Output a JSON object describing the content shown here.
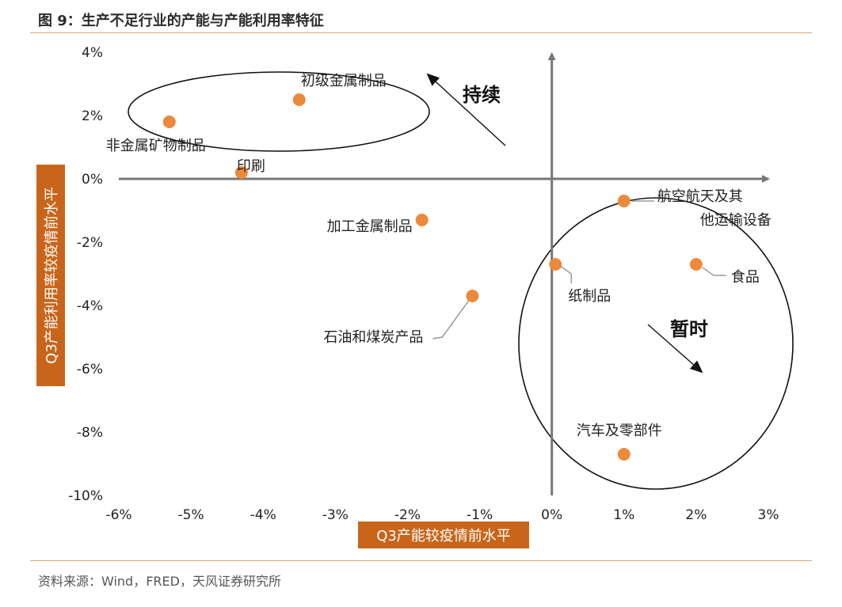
{
  "title": "图 9：生产不足行业的产能与产能利用率特征",
  "source": "资料来源：Wind，FRED，天风证券研究所",
  "colors": {
    "marker": "#ec8a3b",
    "axis_box": "#c8651b",
    "rule": "#d9a46a",
    "axis": "#777777"
  },
  "chart_data": {
    "type": "scatter",
    "xlabel": "Q3产能较疫情前水平",
    "ylabel": "Q3产能利用率较疫情前水平",
    "xlim": [
      -6,
      3
    ],
    "ylim": [
      -10,
      4
    ],
    "x_ticks": [
      "-6%",
      "-5%",
      "-4%",
      "-3%",
      "-2%",
      "-1%",
      "0%",
      "1%",
      "2%",
      "3%"
    ],
    "y_ticks": [
      "4%",
      "2%",
      "0%",
      "-2%",
      "-4%",
      "-6%",
      "-8%",
      "-10%"
    ],
    "points": [
      {
        "label": "初级金属制品",
        "x": -3.5,
        "y": 2.5
      },
      {
        "label": "非金属矿物制品",
        "x": -5.3,
        "y": 1.8
      },
      {
        "label": "印刷",
        "x": -4.3,
        "y": 0.2
      },
      {
        "label": "加工金属制品",
        "x": -1.8,
        "y": -1.3
      },
      {
        "label": "石油和煤炭产品",
        "x": -1.1,
        "y": -3.7
      },
      {
        "label": "航空航天及其他运输设备",
        "x": 1.0,
        "y": -0.7
      },
      {
        "label": "纸制品",
        "x": 0.05,
        "y": -2.7
      },
      {
        "label": "食品",
        "x": 2.0,
        "y": -2.7
      },
      {
        "label": "汽车及零部件",
        "x": 1.0,
        "y": -8.7
      }
    ],
    "annotations": {
      "persistent": "持续",
      "temporary": "暂时"
    }
  }
}
